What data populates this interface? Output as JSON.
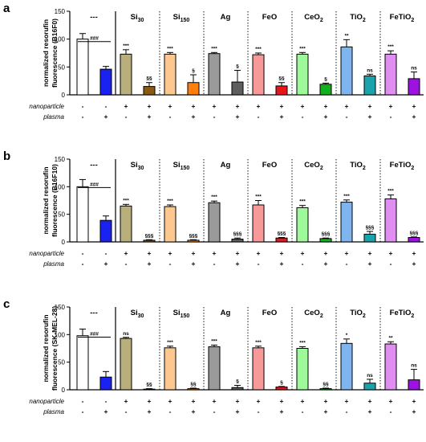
{
  "chart_data": {
    "type": "bar",
    "categories": [
      "untreated",
      "plasma",
      "Si30",
      "Si30+plasma",
      "Si150",
      "Si150+plasma",
      "Ag",
      "Ag+plasma",
      "FeO",
      "FeO+plasma",
      "CeO2",
      "CeO2+plasma",
      "TiO2",
      "TiO2+plasma",
      "FeTiO2",
      "FeTiO2+plasma"
    ],
    "colors": [
      "#ffffff",
      "#1a22f0",
      "#b9af7d",
      "#8a5a14",
      "#fdc890",
      "#ff7f0e",
      "#9a9a9a",
      "#5e5e5e",
      "#f79999",
      "#e8161b",
      "#9ef99a",
      "#12b01f",
      "#7fb5ef",
      "#1aa3aa",
      "#e08ef2",
      "#9d12e0"
    ],
    "groups": [
      {
        "label": "---",
        "main": "---",
        "sub": ""
      },
      {
        "label": "Si30",
        "main": "Si",
        "sub": "30"
      },
      {
        "label": "Si150",
        "main": "Si",
        "sub": "150"
      },
      {
        "label": "Ag",
        "main": "Ag",
        "sub": ""
      },
      {
        "label": "FeO",
        "main": "FeO",
        "sub": ""
      },
      {
        "label": "CeO2",
        "main": "CeO",
        "sub": "2"
      },
      {
        "label": "TiO2",
        "main": "TiO",
        "sub": "2"
      },
      {
        "label": "FeTiO2",
        "main": "FeTiO",
        "sub": "2"
      }
    ],
    "ylim": [
      0,
      150
    ],
    "yticks": [
      "0",
      "50",
      "100",
      "150"
    ],
    "row_labels": {
      "nanoparticle": "nanoparticle",
      "plasma": "plasma"
    },
    "nanoparticle_signs": [
      "-",
      "-",
      "+",
      "+",
      "+",
      "+",
      "+",
      "+",
      "+",
      "+",
      "+",
      "+",
      "+",
      "+",
      "+",
      "+"
    ],
    "plasma_signs": [
      "-",
      "+",
      "-",
      "+",
      "-",
      "+",
      "-",
      "+",
      "-",
      "+",
      "-",
      "+",
      "-",
      "+",
      "-",
      "+"
    ],
    "panels": [
      {
        "letter": "a",
        "ylabel_line1": "normalized resorufin",
        "ylabel_line2": "fluorescence (B16F0)",
        "control_sig": "###",
        "values": [
          100,
          46,
          73,
          15,
          73,
          22,
          74,
          23,
          72,
          16,
          73,
          19,
          86,
          34,
          73,
          29
        ],
        "errors": [
          10,
          5,
          8,
          7,
          3,
          14,
          2,
          21,
          3,
          6,
          3,
          2,
          13,
          3,
          6,
          12
        ],
        "annotations": [
          "",
          "",
          "***",
          "§§",
          "***",
          "§",
          "***",
          "§",
          "***",
          "§§",
          "***",
          "§",
          "**",
          "ns",
          "***",
          "ns"
        ]
      },
      {
        "letter": "b",
        "ylabel_line1": "normalized resorufin",
        "ylabel_line2": "fluorescence (B16F10)",
        "control_sig": "###",
        "values": [
          100,
          39,
          65,
          3,
          64,
          3,
          71,
          5,
          67,
          7,
          62,
          6,
          72,
          14,
          78,
          8
        ],
        "errors": [
          13,
          8,
          3,
          1,
          3,
          1,
          3,
          2,
          8,
          1,
          4,
          1,
          4,
          5,
          7,
          1
        ],
        "annotations": [
          "",
          "",
          "***",
          "§§§",
          "***",
          "§§§",
          "***",
          "§§§",
          "***",
          "§§§",
          "***",
          "§§§",
          "***",
          "§§§",
          "***",
          "§§§"
        ]
      },
      {
        "letter": "c",
        "ylabel_line1": "normalized resorufin",
        "ylabel_line2": "fluorescence (SK-MEL-28)",
        "control_sig": "###",
        "values": [
          98,
          23,
          93,
          1,
          76,
          2,
          78,
          4,
          76,
          5,
          75,
          2,
          84,
          12,
          83,
          18
        ],
        "errors": [
          12,
          10,
          2,
          1,
          3,
          1,
          3,
          4,
          3,
          1,
          3,
          1,
          8,
          7,
          4,
          19
        ],
        "annotations": [
          "",
          "",
          "ns",
          "§§",
          "***",
          "§§",
          "***",
          "§",
          "***",
          "§",
          "***",
          "§§",
          "*",
          "ns",
          "**",
          "ns"
        ]
      }
    ]
  }
}
